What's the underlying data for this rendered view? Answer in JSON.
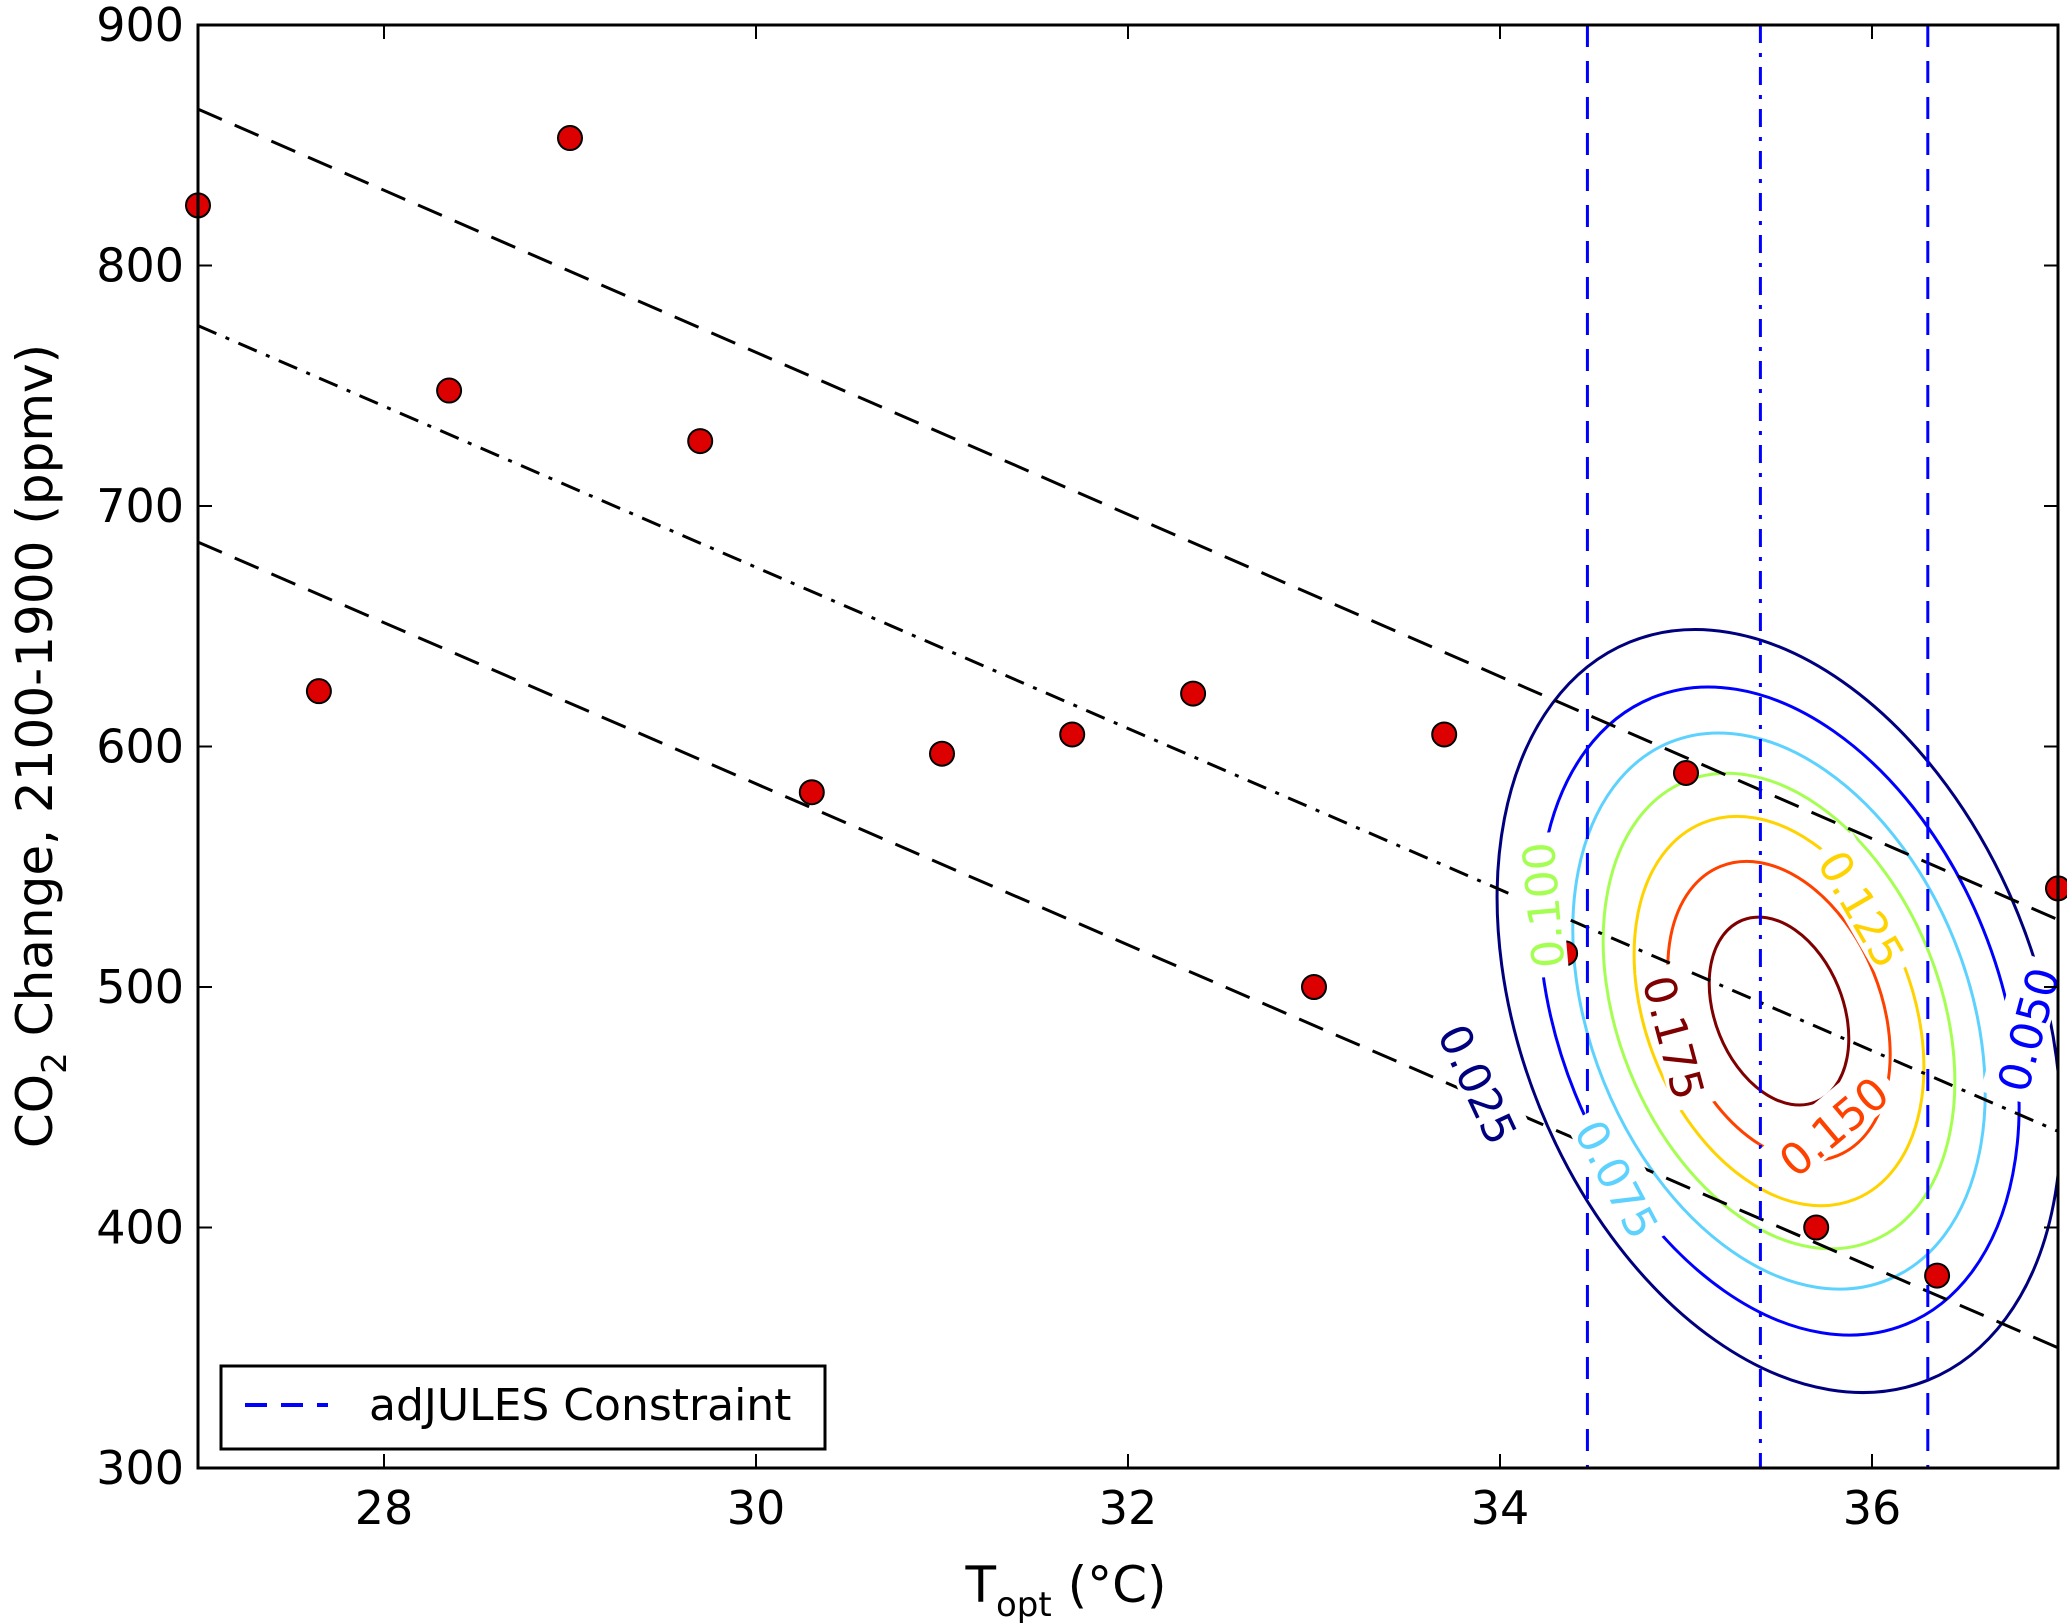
{
  "chart_data": {
    "type": "scatter",
    "title": "",
    "xlabel": {
      "main": "T",
      "sub": "opt",
      "unit": " (°C)"
    },
    "ylabel": {
      "main": "CO",
      "sub": "2",
      "rest": " Change, 2100-1900 (ppmv)"
    },
    "xlim": [
      27,
      37
    ],
    "ylim": [
      300,
      900
    ],
    "xticks": [
      28,
      30,
      32,
      34,
      36
    ],
    "yticks": [
      300,
      400,
      500,
      600,
      700,
      800,
      900
    ],
    "grid": false,
    "points": [
      [
        27.0,
        825
      ],
      [
        27.65,
        623
      ],
      [
        28.35,
        748
      ],
      [
        29.0,
        853
      ],
      [
        29.7,
        727
      ],
      [
        30.3,
        581
      ],
      [
        31.0,
        597
      ],
      [
        31.7,
        605
      ],
      [
        32.35,
        622
      ],
      [
        33.0,
        500
      ],
      [
        33.7,
        605
      ],
      [
        34.35,
        514
      ],
      [
        35.0,
        589
      ],
      [
        35.7,
        400
      ],
      [
        36.35,
        380
      ],
      [
        37.0,
        541
      ]
    ],
    "point_color": "#dd0000",
    "regression_lines": [
      {
        "style": "dashed",
        "x": [
          27,
          37
        ],
        "y": [
          865,
          528
        ]
      },
      {
        "style": "dashdot",
        "x": [
          27,
          37
        ],
        "y": [
          775,
          440
        ]
      },
      {
        "style": "dashed",
        "x": [
          27,
          37
        ],
        "y": [
          685,
          350
        ]
      }
    ],
    "constraint": {
      "name": "adJULES Constraint",
      "color": "#0000ff",
      "mean": 35.4,
      "lower": 34.47,
      "upper": 36.3
    },
    "contours": {
      "center": [
        35.5,
        490
      ],
      "levels": [
        {
          "value": "0.025",
          "color": "#00007f"
        },
        {
          "value": "0.050",
          "color": "#0000ff"
        },
        {
          "value": "0.075",
          "color": "#5ed2ff"
        },
        {
          "value": "0.100",
          "color": "#a4ff52"
        },
        {
          "value": "0.125",
          "color": "#ffd300"
        },
        {
          "value": "0.150",
          "color": "#ff4100"
        },
        {
          "value": "0.175",
          "color": "#7f0000"
        }
      ]
    },
    "legend": {
      "position": "lower-left",
      "entries": [
        "adJULES Constraint"
      ]
    }
  }
}
